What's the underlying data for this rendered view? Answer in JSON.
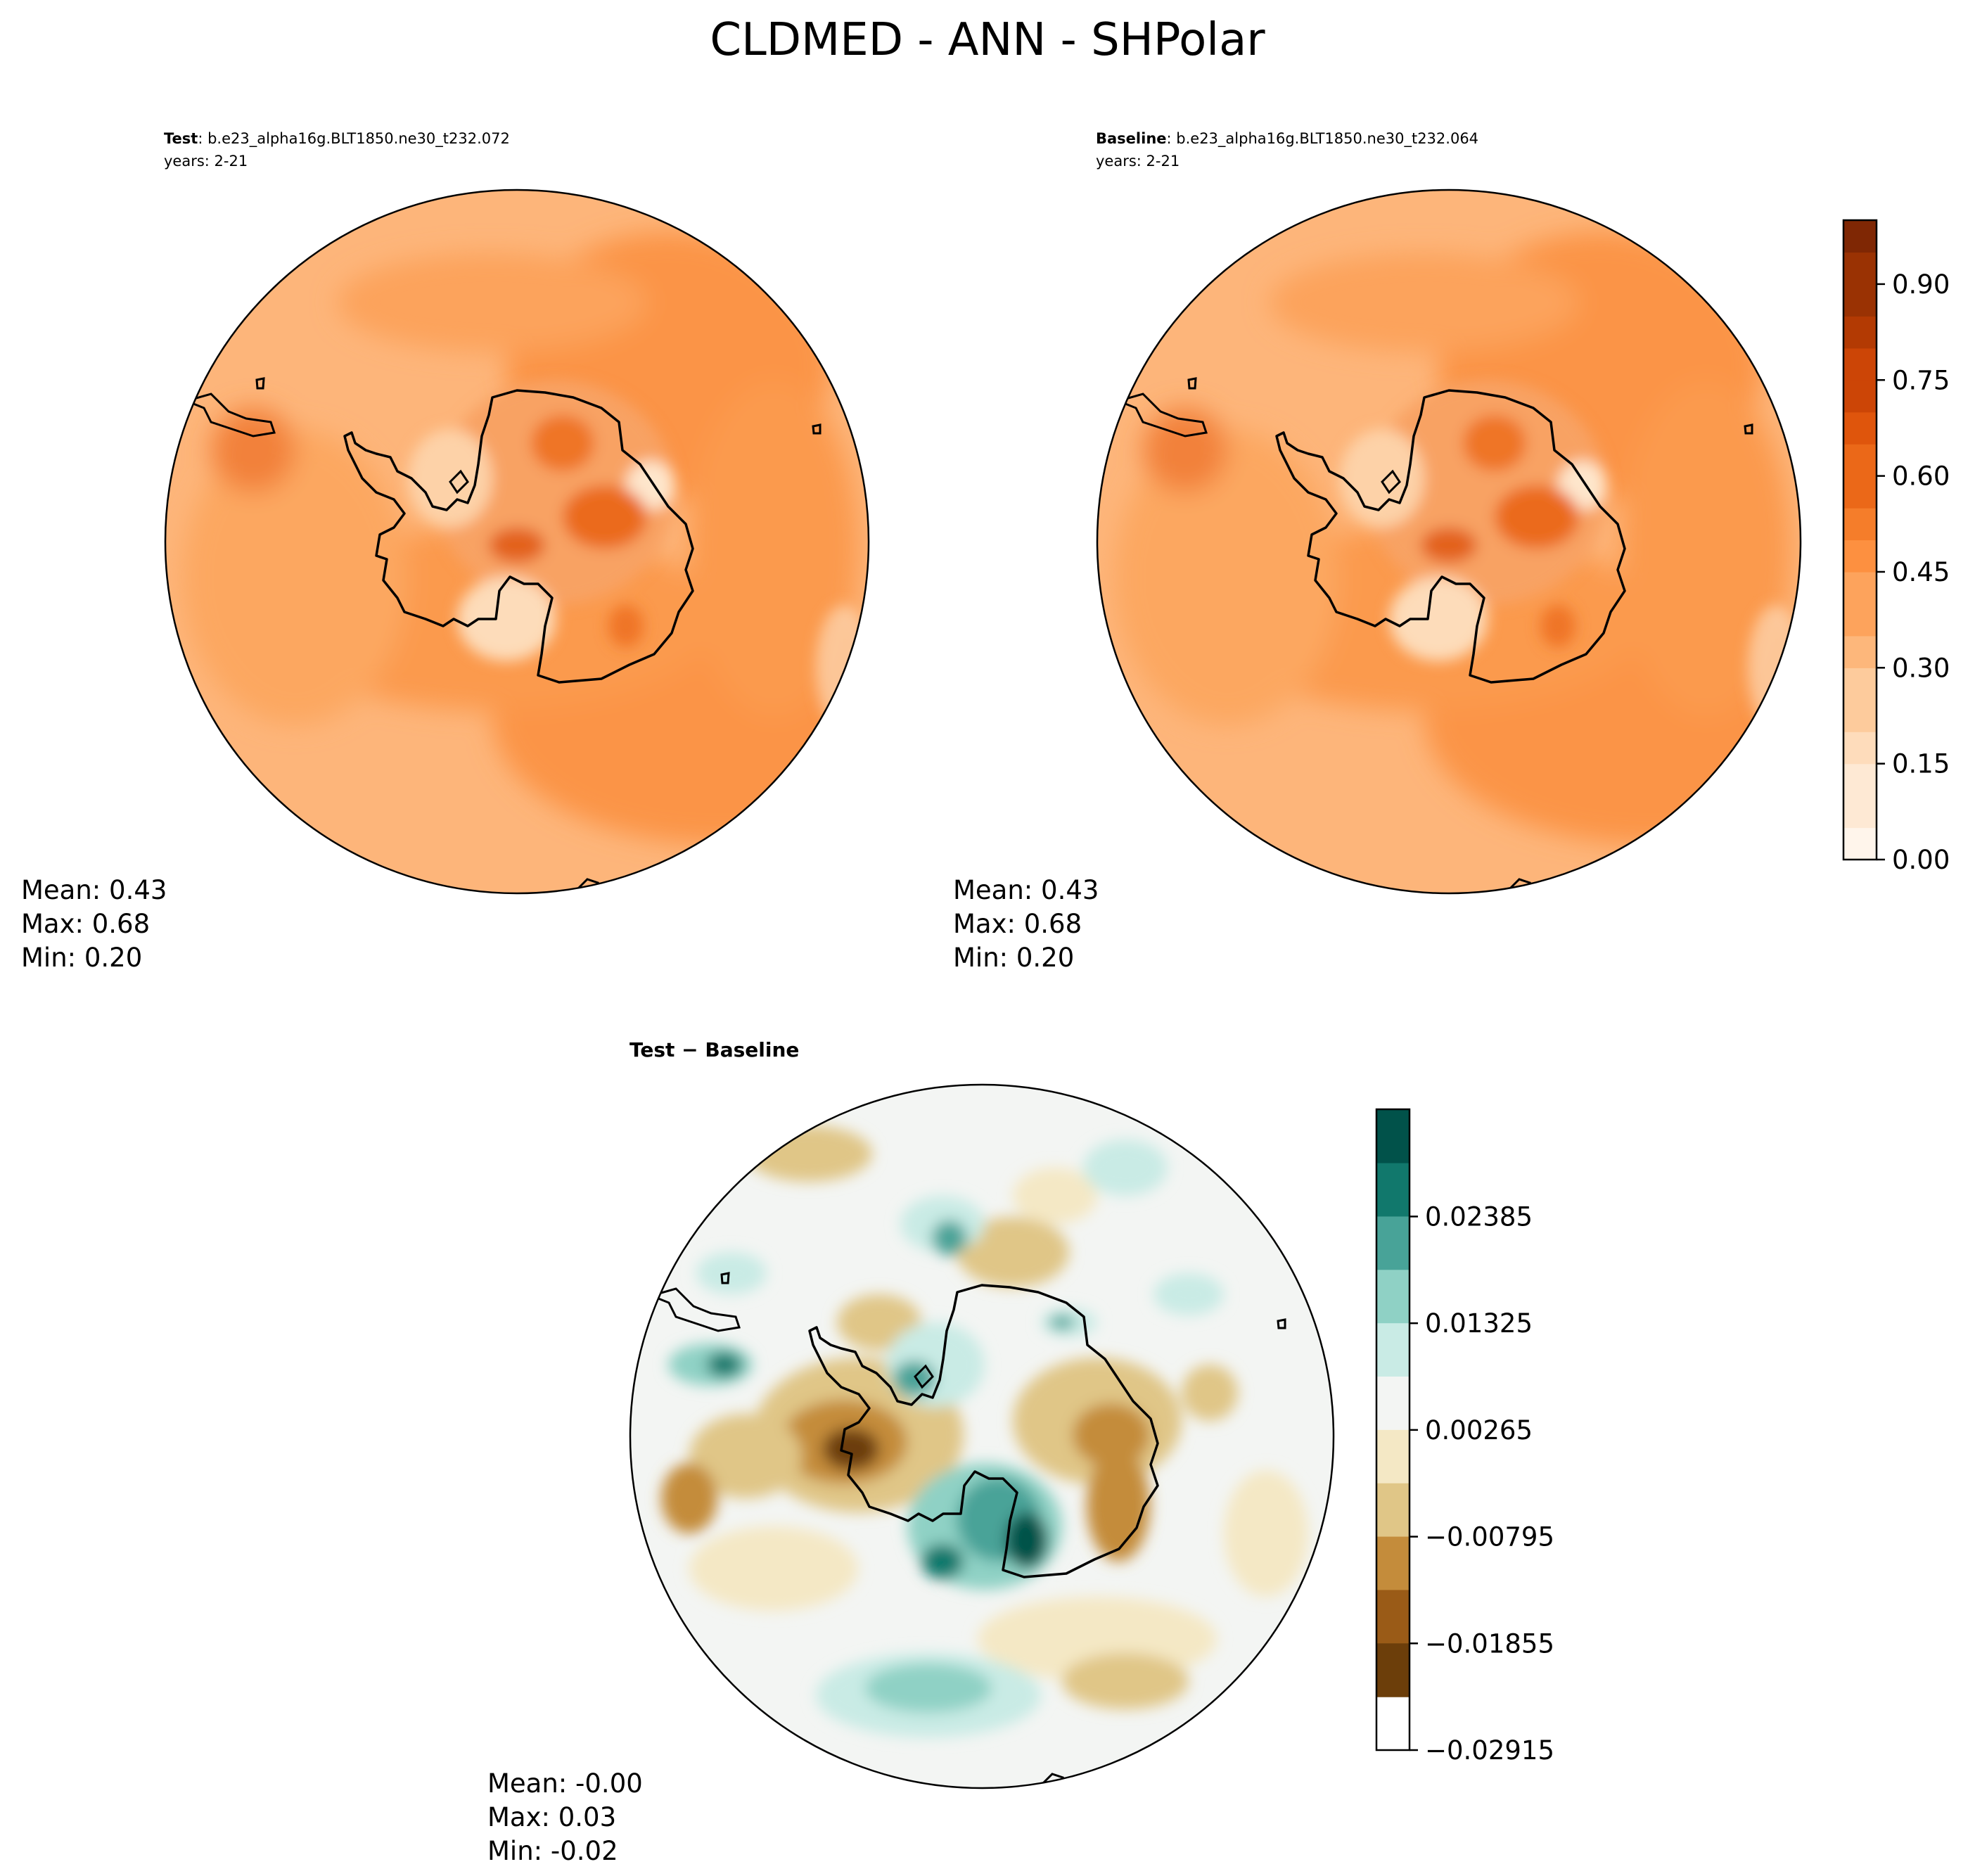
{
  "figure": {
    "title": "CLDMED - ANN - SHPolar"
  },
  "chart_data": [
    {
      "type": "heatmap",
      "projection": "south-polar-stereographic",
      "panel": "test",
      "label_bold": "Test",
      "label_rest": ": b.e23_alpha16g.BLT1850.ne30_t232.072",
      "years": "years: 2-21",
      "stats": {
        "mean": "Mean:  0.43",
        "max": "Max:  0.68",
        "min": "Min:  0.20"
      },
      "value_range": [
        0.0,
        1.0
      ],
      "colormap": "Oranges"
    },
    {
      "type": "heatmap",
      "projection": "south-polar-stereographic",
      "panel": "baseline",
      "label_bold": "Baseline",
      "label_rest": ": b.e23_alpha16g.BLT1850.ne30_t232.064",
      "years": "years: 2-21",
      "stats": {
        "mean": "Mean:  0.43",
        "max": "Max:  0.68",
        "min": "Min:  0.20"
      },
      "value_range": [
        0.0,
        1.0
      ],
      "colormap": "Oranges",
      "colorbar": {
        "ticks": [
          "0.90",
          "0.75",
          "0.60",
          "0.45",
          "0.30",
          "0.15",
          "0.00"
        ],
        "tick_values": [
          0.9,
          0.75,
          0.6,
          0.45,
          0.3,
          0.15,
          0.0
        ],
        "levels": 20,
        "colors": [
          "#fff5eb",
          "#fee9d4",
          "#fedcbb",
          "#fdcb9c",
          "#fdb77b",
          "#fda35c",
          "#fd9040",
          "#f57d2a",
          "#eb6818",
          "#df550c",
          "#cc4506",
          "#b33a03",
          "#9a3203",
          "#7f2704"
        ]
      }
    },
    {
      "type": "heatmap",
      "projection": "south-polar-stereographic",
      "panel": "difference",
      "label": "Test − Baseline",
      "stats": {
        "mean": "Mean: -0.00",
        "max": "Max:  0.03",
        "min": "Min: -0.02"
      },
      "value_range": [
        -0.02915,
        0.02915
      ],
      "colormap": "BrBG",
      "colorbar": {
        "ticks": [
          "0.02385",
          "0.01325",
          "0.00265",
          "−0.00795",
          "−0.01855",
          "−0.02915"
        ],
        "tick_values": [
          0.02385,
          0.01325,
          0.00265,
          -0.00795,
          -0.01855,
          -0.02915
        ],
        "bins": [
          {
            "lo": 0.02915,
            "hi": 0.0345,
            "color": "#01524a"
          },
          {
            "lo": 0.02385,
            "hi": 0.02915,
            "color": "#11786c"
          },
          {
            "lo": 0.01855,
            "hi": 0.02385,
            "color": "#48a398"
          },
          {
            "lo": 0.01325,
            "hi": 0.01855,
            "color": "#8fd1c5"
          },
          {
            "lo": 0.00795,
            "hi": 0.01325,
            "color": "#c9ebe5"
          },
          {
            "lo": 0.00265,
            "hi": 0.00795,
            "color": "#f3f5f3"
          },
          {
            "lo": -0.00265,
            "hi": 0.00265,
            "color": "#f4e8c5"
          },
          {
            "lo": -0.00795,
            "hi": -0.00265,
            "color": "#e0c687"
          },
          {
            "lo": -0.01325,
            "hi": -0.00795,
            "color": "#c48c3b"
          },
          {
            "lo": -0.01855,
            "hi": -0.01325,
            "color": "#9a5b17"
          },
          {
            "lo": -0.02385,
            "hi": -0.01855,
            "color": "#6c3e0a"
          }
        ]
      }
    }
  ]
}
